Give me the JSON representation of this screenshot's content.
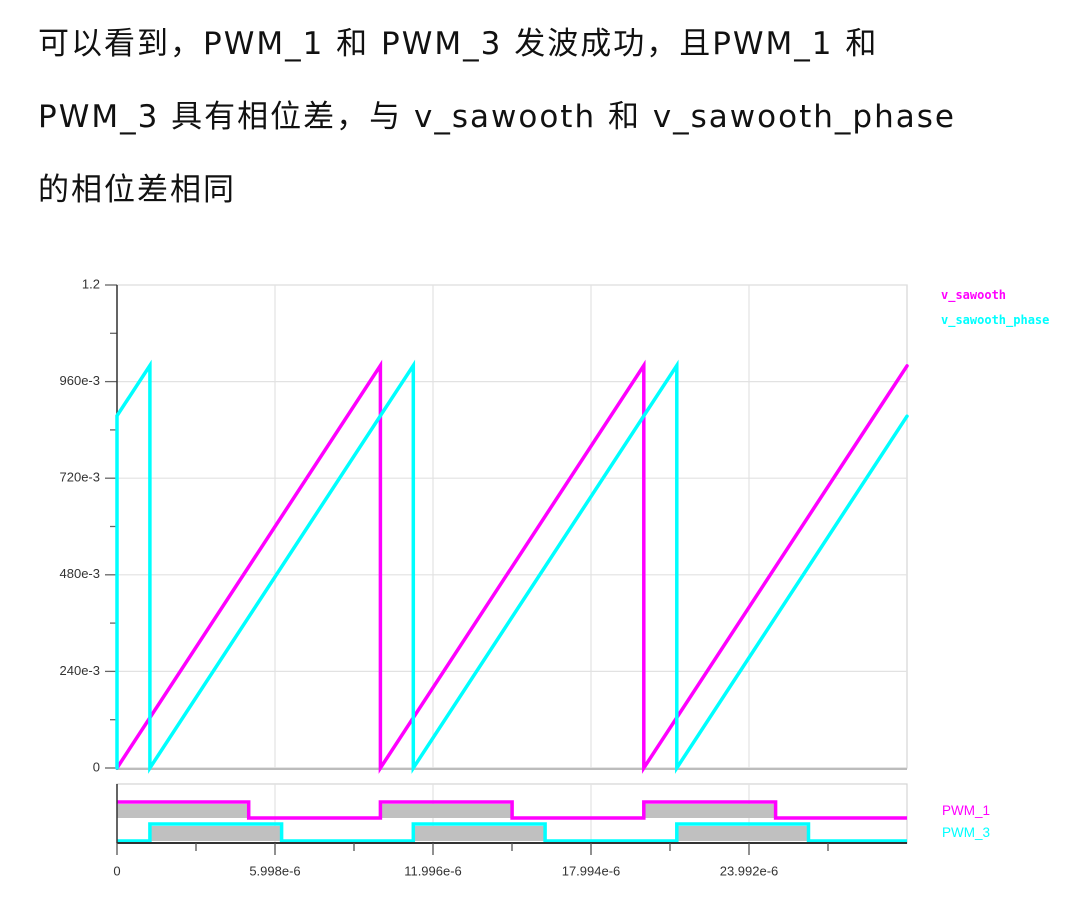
{
  "description": {
    "lines": [
      "可以看到，PWM_1 和 PWM_3 发波成功，且PWM_1 和",
      "PWM_3 具有相位差，与 v_sawooth 和 v_sawooth_phase",
      "的相位差相同"
    ]
  },
  "colors": {
    "v_sawooth": "#ff00ff",
    "v_sawooth_phase": "#00ffff",
    "pwm_fill": "#c0c0c0",
    "axis": "#333333",
    "grid": "#e2e2e2",
    "frame": "#d4d4d4"
  },
  "legend": {
    "analog": [
      {
        "label": "v_sawooth",
        "color": "#ff00ff"
      },
      {
        "label": "v_sawooth_phase",
        "color": "#00ffff"
      }
    ],
    "digital": [
      {
        "label": "PWM_1",
        "color": "#ff00ff"
      },
      {
        "label": "PWM_3",
        "color": "#00ffff"
      }
    ]
  },
  "chart_data": {
    "type": "line",
    "title": "",
    "xlabel": "",
    "ylabel": "",
    "xlim": [
      0,
      2.999e-05
    ],
    "x_ticks": [
      0,
      5.998e-06,
      1.1996e-05,
      1.7994e-05,
      2.3992e-05
    ],
    "x_tick_labels": [
      "0",
      "5.998e-6",
      "11.996e-6",
      "17.994e-6",
      "23.992e-6"
    ],
    "grid": true,
    "legend_position": "right",
    "panels": [
      {
        "name": "analog",
        "ylim": [
          0,
          1.2
        ],
        "y_ticks": [
          0,
          0.24,
          0.48,
          0.72,
          0.96,
          1.2
        ],
        "y_tick_labels": [
          "0",
          "240e-3",
          "480e-3",
          "720e-3",
          "960e-3",
          "1.2"
        ],
        "series": [
          {
            "name": "v_sawooth",
            "color": "#ff00ff",
            "x": [
              0,
              1e-05,
              1e-05,
              2e-05,
              2e-05,
              2.999e-05
            ],
            "y": [
              0,
              1.0,
              0,
              1.0,
              0,
              0.999
            ]
          },
          {
            "name": "v_sawooth_phase",
            "color": "#00ffff",
            "x": [
              0,
              0,
              1.25e-06,
              1.25e-06,
              1.125e-05,
              1.125e-05,
              2.125e-05,
              2.125e-05,
              2.999e-05
            ],
            "y": [
              0,
              0.875,
              1.0,
              0,
              1.0,
              0,
              1.0,
              0,
              0.874
            ]
          }
        ]
      },
      {
        "name": "digital",
        "type": "digital",
        "series": [
          {
            "name": "PWM_1",
            "color": "#ff00ff",
            "high_intervals": [
              [
                0,
                5e-06
              ],
              [
                1e-05,
                1.5e-05
              ],
              [
                2e-05,
                2.5e-05
              ]
            ]
          },
          {
            "name": "PWM_3",
            "color": "#00ffff",
            "high_intervals": [
              [
                1.25e-06,
                6.25e-06
              ],
              [
                1.125e-05,
                1.625e-05
              ],
              [
                2.125e-05,
                2.625e-05
              ]
            ]
          }
        ]
      }
    ]
  }
}
